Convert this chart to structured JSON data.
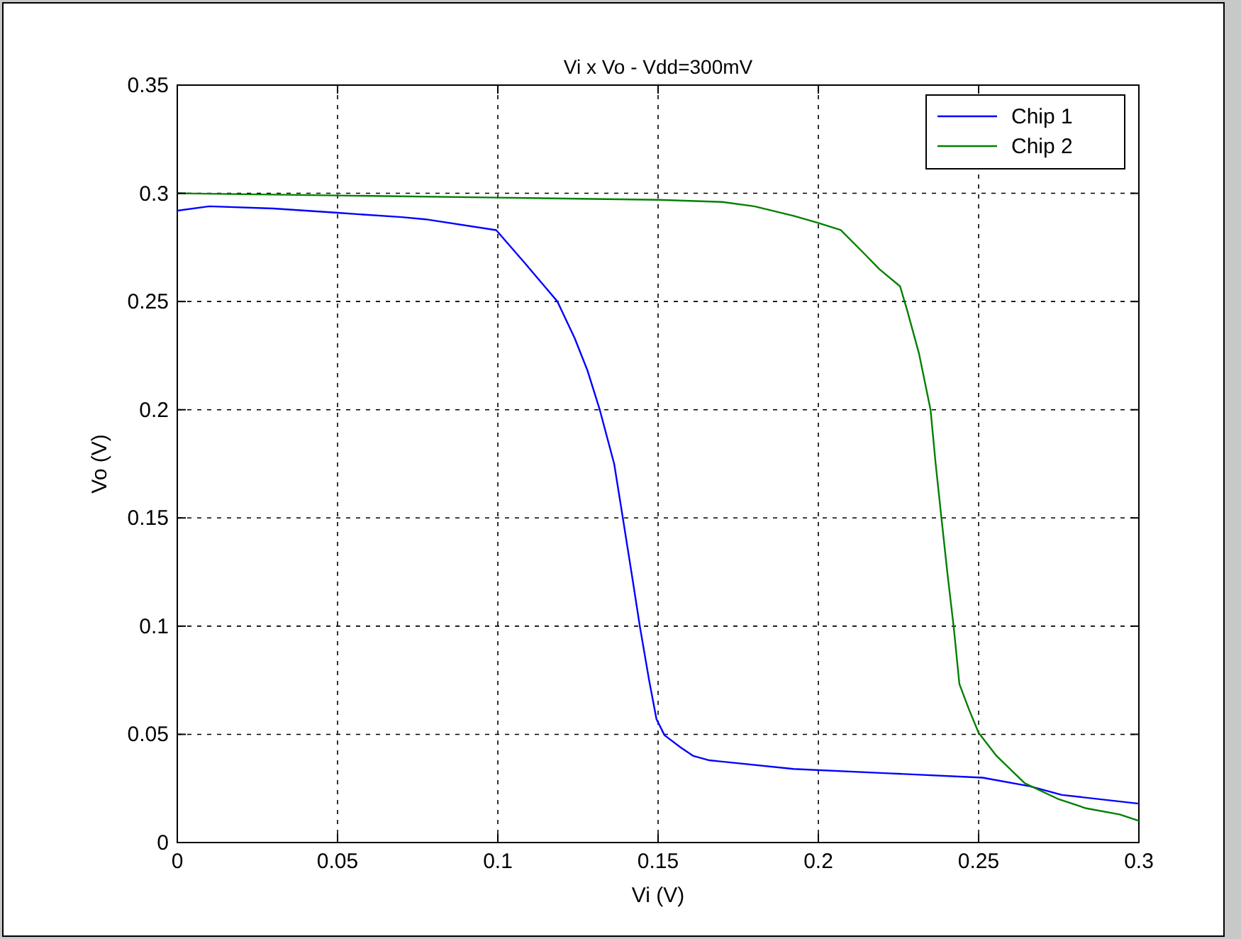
{
  "chart_data": {
    "type": "line",
    "title": "Vi x Vo - Vdd=300mV",
    "xlabel": "Vi (V)",
    "ylabel": "Vo (V)",
    "xlim": [
      0,
      0.3
    ],
    "xticks": [
      0,
      0.05,
      0.1,
      0.15,
      0.2,
      0.25,
      0.3
    ],
    "ylim": [
      0,
      0.35
    ],
    "yticks": [
      0,
      0.05,
      0.1,
      0.15,
      0.2,
      0.25,
      0.3,
      0.35
    ],
    "grid": true,
    "legend": "top right",
    "line_style": "solid",
    "series": [
      {
        "name": "Chip 1",
        "color": "#0000ff",
        "x": [
          0,
          0.01,
          0.03,
          0.05,
          0.07,
          0.0774,
          0.0995,
          0.1083,
          0.1186,
          0.124,
          0.128,
          0.1318,
          0.1363,
          0.139,
          0.142,
          0.1443,
          0.1472,
          0.1495,
          0.152,
          0.157,
          0.161,
          0.166,
          0.1923,
          0.2218,
          0.2512,
          0.266,
          0.276,
          0.3
        ],
        "values": [
          0.292,
          0.294,
          0.293,
          0.291,
          0.289,
          0.288,
          0.283,
          0.268,
          0.25,
          0.233,
          0.218,
          0.2,
          0.175,
          0.15,
          0.122,
          0.1,
          0.075,
          0.057,
          0.0496,
          0.044,
          0.04,
          0.038,
          0.034,
          0.032,
          0.03,
          0.026,
          0.022,
          0.018
        ]
      },
      {
        "name": "Chip 2",
        "color": "#008000",
        "x": [
          0,
          0.05,
          0.1,
          0.15,
          0.17,
          0.18,
          0.1923,
          0.2,
          0.207,
          0.2144,
          0.219,
          0.2255,
          0.2277,
          0.2314,
          0.235,
          0.2366,
          0.2384,
          0.2403,
          0.2422,
          0.244,
          0.247,
          0.25,
          0.2556,
          0.2644,
          0.275,
          0.2836,
          0.294,
          0.3
        ],
        "values": [
          0.3,
          0.299,
          0.298,
          0.297,
          0.296,
          0.294,
          0.2896,
          0.2863,
          0.283,
          0.272,
          0.265,
          0.257,
          0.246,
          0.226,
          0.2,
          0.175,
          0.15,
          0.124,
          0.1,
          0.0733,
          0.0615,
          0.0507,
          0.04,
          0.0274,
          0.02,
          0.0158,
          0.013,
          0.01
        ]
      }
    ]
  }
}
